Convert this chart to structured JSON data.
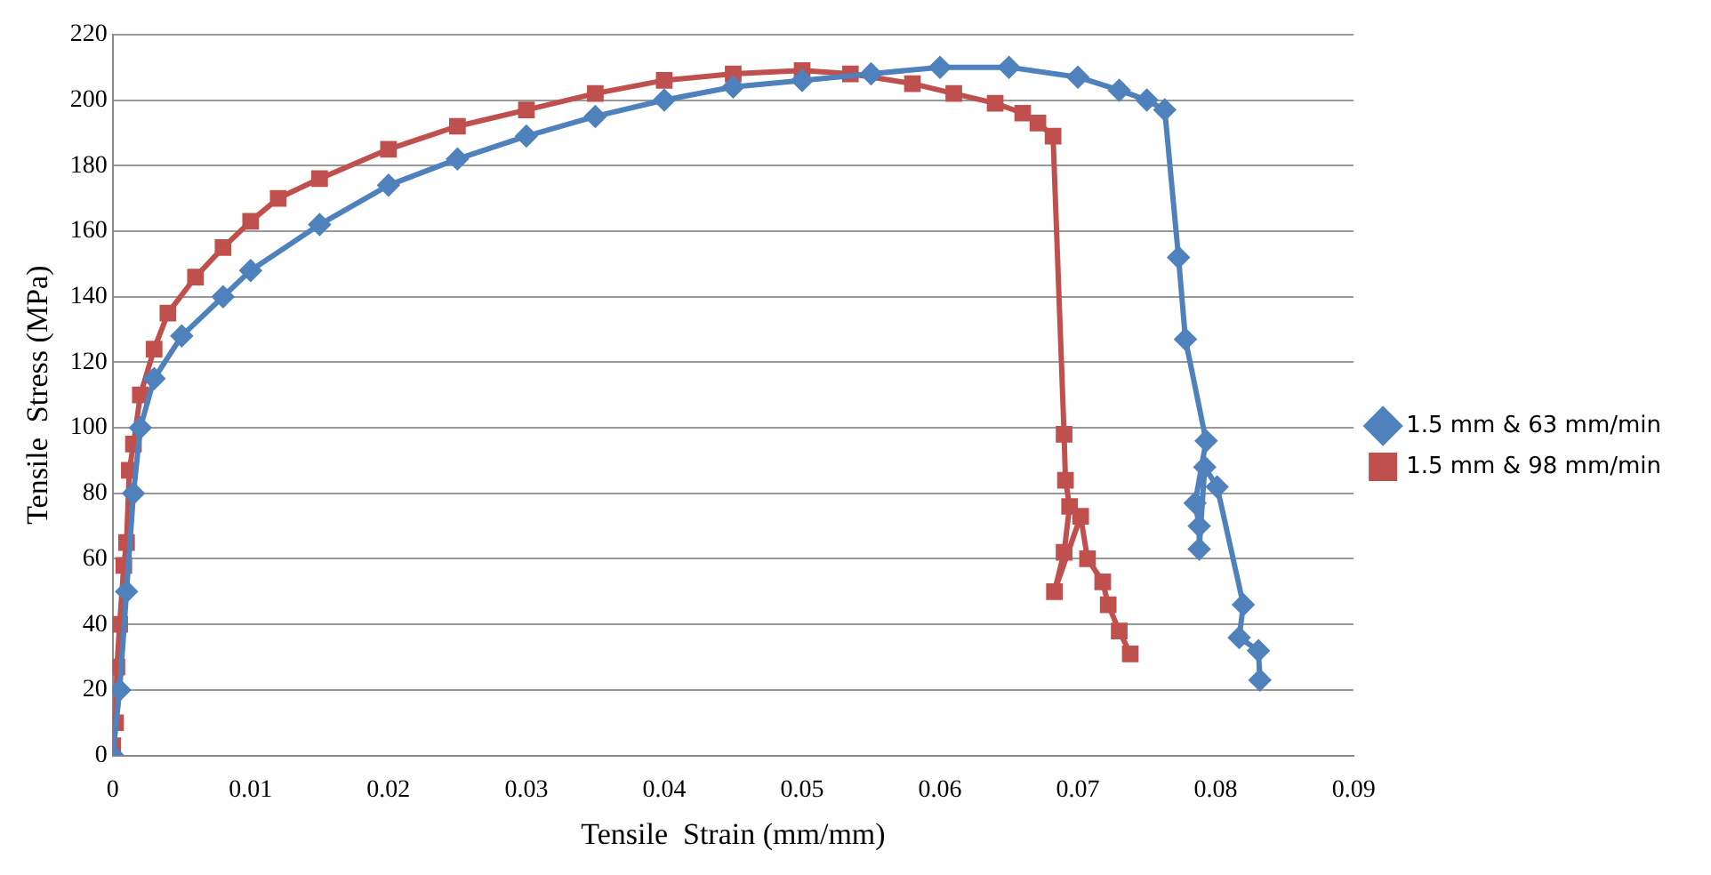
{
  "chart_data": {
    "type": "line",
    "xlabel": "Tensile  Strain (mm/mm)",
    "ylabel": "Tensile  Stress (MPa)",
    "xlim": [
      0,
      0.09
    ],
    "xticks": [
      0,
      0.01,
      0.02,
      0.03,
      0.04,
      0.05,
      0.06,
      0.07,
      0.08,
      0.09
    ],
    "ylim": [
      0,
      220
    ],
    "yticks": [
      0,
      20,
      40,
      60,
      80,
      100,
      120,
      140,
      160,
      180,
      200,
      220
    ],
    "grid": "y",
    "legend": "right",
    "line_style": "solid",
    "series": [
      {
        "name": "1.5 mm & 63 mm/min",
        "color": "#4f81bd",
        "marker": "diamond",
        "x": [
          0,
          0.0005,
          0.001,
          0.0015,
          0.002,
          0.003,
          0.005,
          0.008,
          0.01,
          0.015,
          0.02,
          0.025,
          0.03,
          0.035,
          0.04,
          0.045,
          0.05,
          0.055,
          0.06,
          0.065,
          0.07,
          0.073,
          0.075,
          0.0763,
          0.0773,
          0.0778,
          0.0793,
          0.0785,
          0.0788,
          0.0788,
          0.0792,
          0.0801,
          0.082,
          0.0817,
          0.0831,
          0.0832
        ],
        "values": [
          0,
          20,
          50,
          80,
          100,
          115,
          128,
          140,
          148,
          162,
          174,
          182,
          189,
          195,
          200,
          204,
          206,
          208,
          210,
          210,
          207,
          203,
          200,
          197,
          152,
          127,
          96,
          77,
          70,
          63,
          88,
          82,
          46,
          36,
          32,
          23
        ]
      },
      {
        "name": "1.5 mm & 98 mm/min",
        "color": "#c0504d",
        "marker": "square",
        "x": [
          0,
          0.0002,
          0.0003,
          0.0005,
          0.0008,
          0.001,
          0.0012,
          0.0015,
          0.002,
          0.003,
          0.004,
          0.006,
          0.008,
          0.01,
          0.012,
          0.015,
          0.02,
          0.025,
          0.03,
          0.035,
          0.04,
          0.045,
          0.05,
          0.0535,
          0.058,
          0.061,
          0.064,
          0.066,
          0.0671,
          0.0682,
          0.069,
          0.0691,
          0.0694,
          0.069,
          0.0683,
          0.0702,
          0.0707,
          0.0718,
          0.0722,
          0.073,
          0.0738
        ],
        "values": [
          3,
          10,
          27,
          40,
          58,
          65,
          87,
          95,
          110,
          124,
          135,
          146,
          155,
          163,
          170,
          176,
          185,
          192,
          197,
          202,
          206,
          208,
          209,
          208,
          205,
          202,
          199,
          196,
          193,
          189,
          98,
          84,
          76,
          62,
          50,
          73,
          60,
          53,
          46,
          38,
          31
        ]
      }
    ]
  }
}
